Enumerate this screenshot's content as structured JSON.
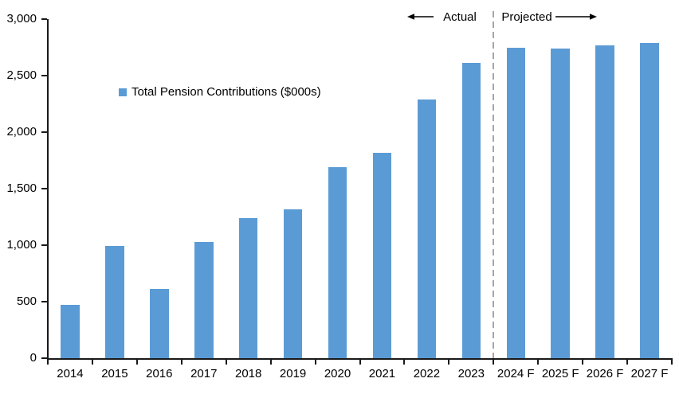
{
  "chart_data": {
    "type": "bar",
    "title": "",
    "legend": "Total Pension Contributions ($000s)",
    "categories": [
      "2014",
      "2015",
      "2016",
      "2017",
      "2018",
      "2019",
      "2020",
      "2021",
      "2022",
      "2023",
      "2024 F",
      "2025 F",
      "2026 F",
      "2027 F"
    ],
    "values": [
      470,
      995,
      615,
      1025,
      1240,
      1320,
      1690,
      1820,
      2290,
      2610,
      2750,
      2740,
      2765,
      2790
    ],
    "xlabel": "",
    "ylabel": "",
    "ylim": [
      0,
      3000
    ],
    "ytick_step": 500,
    "ytick_labels": [
      "0",
      "500",
      "1,000",
      "1,500",
      "2,000",
      "2,500",
      "3,000"
    ],
    "grid": "off",
    "legend_position": "inside-upper-left",
    "bar_color": "#5B9BD5",
    "divider": {
      "after_category": "2023",
      "style": "dashed",
      "color": "#A6A6A6"
    },
    "annotations": [
      {
        "text": "Actual",
        "arrow": "left",
        "side": "left-of-divider"
      },
      {
        "text": "Projected",
        "arrow": "right",
        "side": "right-of-divider"
      }
    ]
  }
}
